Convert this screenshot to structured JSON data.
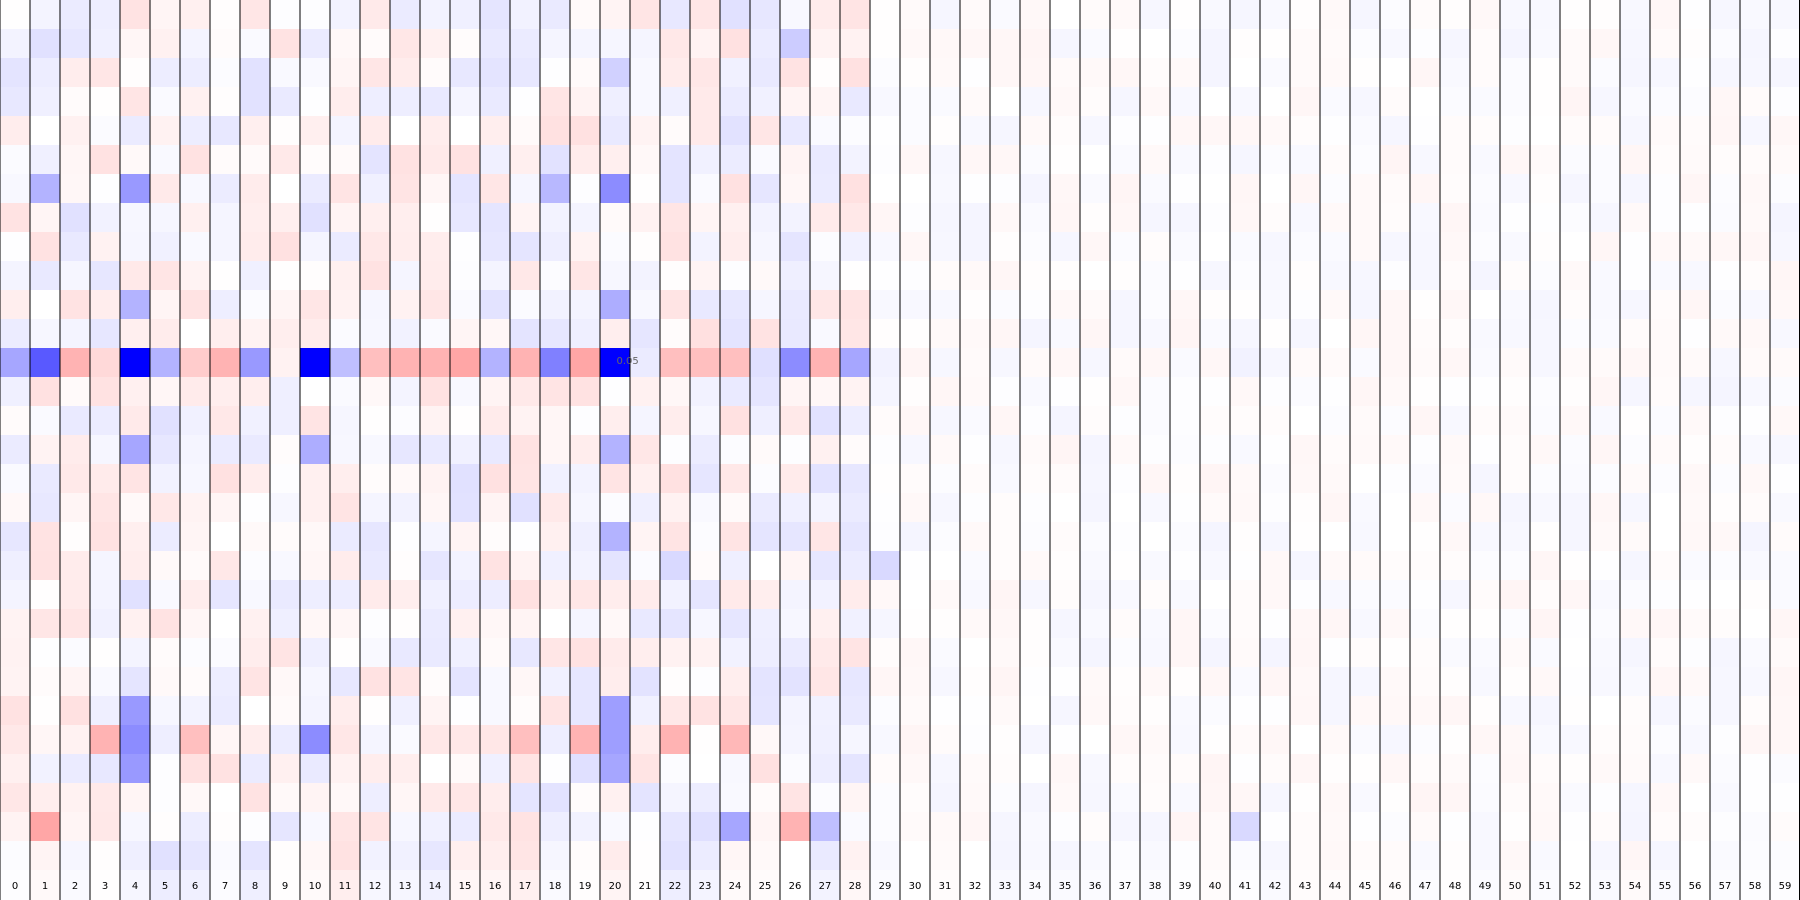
{
  "chart_data": {
    "type": "heatmap",
    "columns": [
      "0",
      "1",
      "2",
      "3",
      "4",
      "5",
      "6",
      "7",
      "8",
      "9",
      "10",
      "11",
      "12",
      "13",
      "14",
      "15",
      "16",
      "17",
      "18",
      "19",
      "20",
      "21",
      "22",
      "23",
      "24",
      "25",
      "26",
      "27",
      "28",
      "29",
      "30",
      "31",
      "32",
      "33",
      "34",
      "35",
      "36",
      "37",
      "38",
      "39",
      "40",
      "41",
      "42",
      "43",
      "44",
      "45",
      "46",
      "47",
      "48",
      "49",
      "50",
      "51",
      "52",
      "53",
      "54",
      "55",
      "56",
      "57",
      "58",
      "59"
    ],
    "row_count": 30,
    "color_scale": {
      "negative": "#0000ff",
      "zero": "#ffffff",
      "positive": "#ff0000",
      "vmin": -1,
      "vmax": 1
    },
    "hover_cell_text": "0.05",
    "strong_rows": {
      "12": [
        -0.35,
        -0.65,
        0.3,
        0.15,
        -1.0,
        -0.3,
        0.2,
        0.3,
        -0.4,
        0.05,
        -1.0,
        -0.25,
        0.25,
        0.3,
        0.3,
        0.35,
        -0.3,
        0.3,
        -0.5,
        0.35,
        -1.0,
        -0.08,
        0.25,
        0.25,
        0.25,
        -0.12,
        -0.45,
        0.3,
        -0.35,
        -0.05,
        0.04,
        -0.03,
        0.02,
        -0.03,
        0.02,
        0.03,
        -0.03,
        0.02,
        0.03,
        -0.02,
        0.03,
        -0.05,
        -0.03,
        0.02,
        0.02,
        -0.02,
        0.03,
        0.02,
        0.03,
        -0.02,
        0.02,
        -0.03,
        0.02,
        0.02,
        0.03,
        0.02,
        0.02,
        -0.03,
        0.02,
        0.02
      ]
    },
    "notable_cells": [
      {
        "row": 6,
        "col": 20,
        "value": -0.45
      },
      {
        "row": 6,
        "col": 4,
        "value": -0.4
      },
      {
        "row": 6,
        "col": 1,
        "value": -0.3
      },
      {
        "row": 6,
        "col": 18,
        "value": -0.28
      },
      {
        "row": 10,
        "col": 4,
        "value": -0.3
      },
      {
        "row": 10,
        "col": 20,
        "value": -0.32
      },
      {
        "row": 15,
        "col": 4,
        "value": -0.35
      },
      {
        "row": 15,
        "col": 10,
        "value": -0.32
      },
      {
        "row": 15,
        "col": 20,
        "value": -0.3
      },
      {
        "row": 18,
        "col": 20,
        "value": -0.3
      },
      {
        "row": 24,
        "col": 4,
        "value": -0.4
      },
      {
        "row": 24,
        "col": 20,
        "value": -0.38
      },
      {
        "row": 25,
        "col": 4,
        "value": -0.45
      },
      {
        "row": 25,
        "col": 10,
        "value": -0.45
      },
      {
        "row": 25,
        "col": 20,
        "value": -0.38
      },
      {
        "row": 25,
        "col": 3,
        "value": 0.3
      },
      {
        "row": 25,
        "col": 6,
        "value": 0.25
      },
      {
        "row": 25,
        "col": 17,
        "value": 0.25
      },
      {
        "row": 25,
        "col": 19,
        "value": 0.3
      },
      {
        "row": 25,
        "col": 22,
        "value": 0.3
      },
      {
        "row": 25,
        "col": 24,
        "value": 0.28
      },
      {
        "row": 26,
        "col": 20,
        "value": -0.35
      },
      {
        "row": 26,
        "col": 4,
        "value": -0.4
      },
      {
        "row": 28,
        "col": 1,
        "value": 0.35
      },
      {
        "row": 28,
        "col": 24,
        "value": -0.35
      },
      {
        "row": 28,
        "col": 26,
        "value": 0.3
      },
      {
        "row": 28,
        "col": 27,
        "value": -0.25
      },
      {
        "row": 28,
        "col": 41,
        "value": -0.15
      },
      {
        "row": 19,
        "col": 22,
        "value": -0.15
      },
      {
        "row": 19,
        "col": 29,
        "value": -0.15
      },
      {
        "row": 1,
        "col": 26,
        "value": -0.2
      },
      {
        "row": 2,
        "col": 20,
        "value": -0.18
      }
    ]
  }
}
